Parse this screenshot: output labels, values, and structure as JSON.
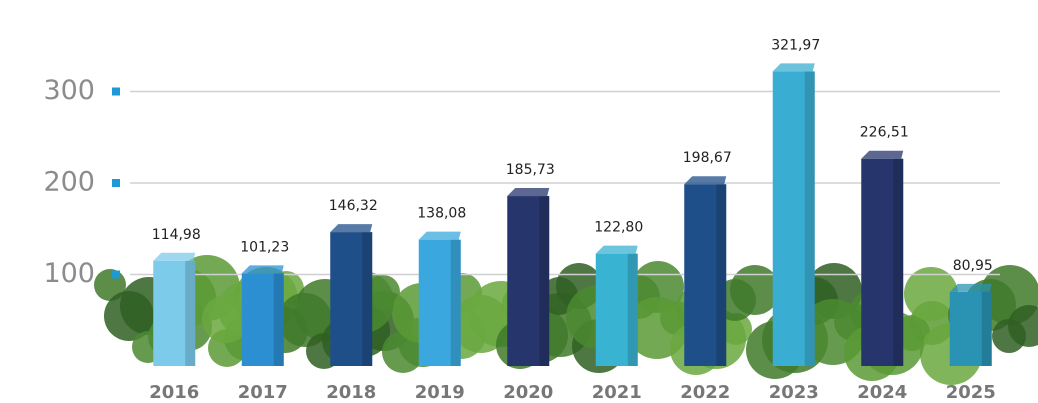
{
  "chart_data": {
    "type": "bar",
    "categories": [
      "2016",
      "2017",
      "2018",
      "2019",
      "2020",
      "2021",
      "2022",
      "2023",
      "2024",
      "2025"
    ],
    "values": [
      114.98,
      101.23,
      146.32,
      138.08,
      185.73,
      122.8,
      198.67,
      321.97,
      226.51,
      80.95
    ],
    "value_labels": [
      "114,98",
      "101,23",
      "146,32",
      "138,08",
      "185,73",
      "122,80",
      "198,67",
      "321,97",
      "226,51",
      "80,95"
    ],
    "colors": [
      "#7ccbea",
      "#2b8fd2",
      "#1f4f88",
      "#3aa8de",
      "#26366c",
      "#39b3d2",
      "#1f4f88",
      "#3aaed2",
      "#26366c",
      "#2a93b3"
    ],
    "ylim": [
      0,
      400
    ],
    "yticks": [
      100,
      200,
      300
    ],
    "grid": true
  }
}
